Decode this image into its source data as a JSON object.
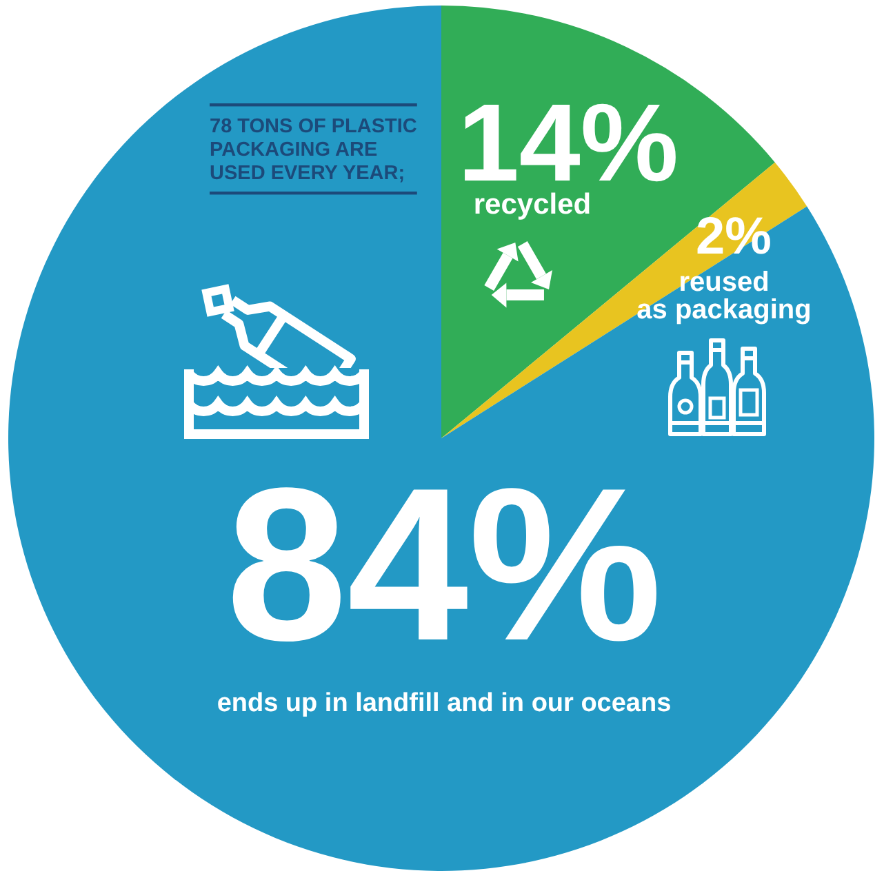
{
  "chart_data": {
    "type": "pie",
    "title": "78 TONS OF PLASTIC PACKAGING ARE USED EVERY YEAR;",
    "categories": [
      "recycled",
      "reused as packaging",
      "ends up in landfill and in our oceans"
    ],
    "values": [
      14,
      2,
      84
    ],
    "colors": [
      "#31ad57",
      "#e8c420",
      "#2399c5"
    ],
    "value_labels": [
      "14%",
      "2%",
      "84%"
    ]
  }
}
